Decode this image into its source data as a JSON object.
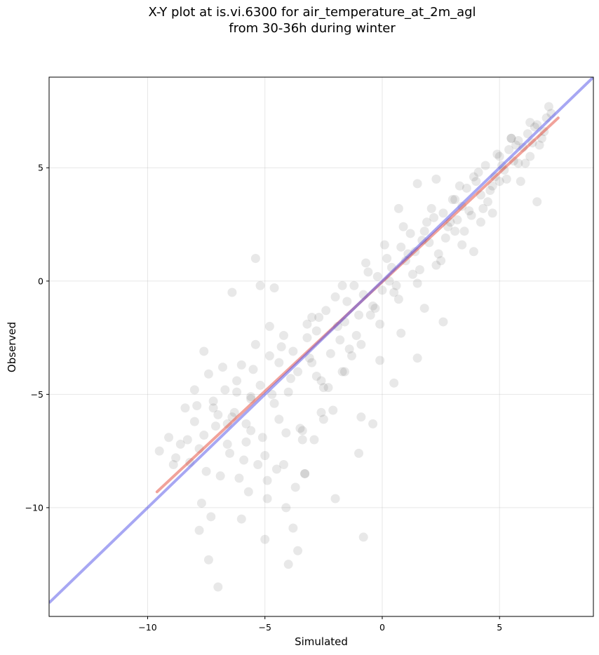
{
  "title_line1": "X-Y plot at is.vi.6300 for air_temperature_at_2m_agl",
  "title_line2": "from 30-36h during winter",
  "chart_data": {
    "type": "scatter",
    "title": "X-Y plot at is.vi.6300 for air_temperature_at_2m_agl from 30-36h during winter",
    "xlabel": "Simulated",
    "ylabel": "Observed",
    "xlim": [
      -14.2,
      9.0
    ],
    "ylim": [
      -14.8,
      9.0
    ],
    "xticks": [
      -10,
      -5,
      0,
      5
    ],
    "xtick_labels": [
      "−10",
      "−5",
      "0",
      "5"
    ],
    "yticks": [
      -10,
      -5,
      0,
      5
    ],
    "ytick_labels": [
      "−10",
      "−5",
      "0",
      "5"
    ],
    "grid": true,
    "point_color": "#000000",
    "point_alpha": 0.09,
    "points": {
      "x": [
        -9.5,
        -9.1,
        -8.8,
        -8.6,
        -8.4,
        -8.2,
        -8.0,
        -7.8,
        -7.6,
        -7.4,
        -7.2,
        -7.0,
        -6.8,
        -6.6,
        -6.4,
        -6.2,
        -6.0,
        -5.8,
        -5.6,
        -5.4,
        -5.2,
        -5.0,
        -4.8,
        -4.6,
        -4.4,
        -4.2,
        -4.0,
        -3.8,
        -3.6,
        -3.4,
        -3.2,
        -3.0,
        -2.8,
        -2.6,
        -2.4,
        -2.2,
        -2.0,
        -1.8,
        -1.6,
        -1.4,
        -1.2,
        -1.0,
        -0.8,
        -0.6,
        -0.4,
        -0.2,
        0.0,
        0.2,
        0.4,
        0.6,
        0.8,
        1.0,
        1.2,
        1.4,
        1.6,
        1.8,
        2.0,
        2.2,
        2.4,
        2.6,
        2.8,
        3.0,
        3.2,
        3.4,
        3.6,
        3.8,
        4.0,
        4.2,
        4.4,
        4.6,
        4.8,
        5.0,
        5.2,
        5.4,
        5.6,
        5.8,
        6.0,
        6.2,
        6.4,
        6.6,
        6.8,
        7.0,
        7.2,
        -8.9,
        -8.3,
        -7.9,
        -7.5,
        -7.1,
        -6.7,
        -6.3,
        -5.9,
        -5.5,
        -5.1,
        -4.7,
        -4.3,
        -3.9,
        -3.5,
        -3.1,
        -2.7,
        -2.3,
        -1.9,
        -1.5,
        -1.1,
        -0.7,
        -0.3,
        0.1,
        0.5,
        0.9,
        1.3,
        1.7,
        2.1,
        2.5,
        2.9,
        3.3,
        3.7,
        4.1,
        4.5,
        4.9,
        5.3,
        5.7,
        6.1,
        6.5,
        6.9,
        -7.7,
        -7.3,
        -6.9,
        -6.5,
        -6.1,
        -5.7,
        -5.3,
        -4.9,
        -4.5,
        -4.1,
        -3.7,
        -3.3,
        -2.9,
        -2.5,
        -2.1,
        -1.7,
        -1.3,
        -0.9,
        -0.5,
        -0.1,
        0.3,
        0.7,
        1.1,
        1.5,
        1.9,
        2.3,
        2.7,
        3.1,
        3.5,
        3.9,
        4.3,
        4.7,
        5.1,
        5.5,
        5.9,
        6.3,
        6.7,
        -7.8,
        -7.4,
        -7.0,
        -6.0,
        -5.0,
        -4.0,
        -3.8,
        -3.6,
        -2.0,
        -1.0,
        -0.8,
        0.5,
        1.5,
        -5.4,
        -5.2,
        -4.6,
        -8.0,
        -7.6,
        -7.2,
        -6.2,
        -5.6,
        -4.8,
        -4.4,
        -3.4,
        -3.0,
        -2.6,
        -6.4,
        -5.8,
        -4.2,
        -3.2,
        -2.8,
        -1.6,
        -0.4,
        0.8,
        1.8,
        2.6,
        3.4,
        4.2,
        5.0,
        5.8,
        6.6,
        -6.6,
        -5.6,
        -4.9,
        -4.1,
        -3.3,
        -2.5,
        -1.7,
        -0.9,
        -0.1,
        0.7,
        1.5,
        2.3,
        3.1,
        3.9,
        4.7,
        5.5,
        6.3,
        7.1
      ],
      "y": [
        -7.5,
        -6.9,
        -7.8,
        -7.2,
        -5.6,
        -8.0,
        -6.2,
        -7.4,
        -6.8,
        -4.1,
        -5.3,
        -5.9,
        -3.8,
        -7.2,
        -6.0,
        -4.4,
        -3.7,
        -6.3,
        -5.1,
        -2.8,
        -4.6,
        -7.7,
        -3.3,
        -5.4,
        -6.1,
        -2.4,
        -4.9,
        -3.1,
        -4.0,
        -6.6,
        -1.9,
        -3.6,
        -2.2,
        -4.4,
        -1.3,
        -3.2,
        -0.7,
        -2.6,
        -1.8,
        -3.0,
        -0.2,
        -1.5,
        -0.6,
        0.4,
        -1.1,
        0.2,
        -0.4,
        1.0,
        0.6,
        -0.2,
        1.5,
        0.9,
        2.1,
        1.3,
        0.5,
        2.2,
        1.7,
        2.8,
        1.2,
        3.0,
        2.4,
        3.6,
        2.7,
        3.3,
        4.1,
        2.9,
        4.4,
        3.8,
        5.1,
        4.0,
        4.6,
        5.5,
        4.9,
        5.8,
        5.3,
        6.2,
        5.9,
        6.5,
        6.1,
        6.9,
        6.3,
        7.2,
        7.4,
        -8.1,
        -7.0,
        -5.5,
        -8.4,
        -6.4,
        -4.8,
        -5.8,
        -7.9,
        -3.9,
        -6.9,
        -5.0,
        -2.9,
        -4.3,
        -6.5,
        -3.4,
        -1.6,
        -4.7,
        -2.0,
        -0.9,
        -2.4,
        0.8,
        -1.2,
        1.6,
        -0.5,
        2.4,
        0.3,
        1.8,
        3.2,
        0.9,
        2.6,
        4.2,
        3.1,
        4.8,
        3.5,
        5.6,
        4.5,
        6.0,
        5.2,
        6.8,
        6.6,
        -9.8,
        -10.4,
        -8.6,
        -7.6,
        -8.7,
        -9.3,
        -8.1,
        -9.6,
        -8.3,
        -10.0,
        -9.1,
        -8.5,
        -7.0,
        -6.1,
        -5.7,
        -4.0,
        -3.3,
        -2.8,
        -1.5,
        -1.9,
        0.0,
        -0.8,
        1.2,
        -0.1,
        2.6,
        0.7,
        1.9,
        3.6,
        2.2,
        4.6,
        3.2,
        4.2,
        5.1,
        6.3,
        4.4,
        5.5,
        6.0,
        -11.0,
        -12.3,
        -13.5,
        -10.5,
        -11.4,
        -12.5,
        -10.9,
        -11.9,
        -9.6,
        -7.6,
        -11.3,
        -4.5,
        -3.4,
        1.0,
        -0.2,
        -0.3,
        -4.8,
        -3.1,
        -5.6,
        -4.9,
        -6.6,
        -2.0,
        -3.6,
        -7.0,
        -1.6,
        -5.8,
        -0.5,
        -7.1,
        -8.1,
        -2.5,
        -4.2,
        -4.0,
        -6.3,
        -2.3,
        -1.2,
        -1.8,
        1.6,
        2.6,
        4.4,
        5.2,
        3.5,
        -6.3,
        -5.2,
        -8.8,
        -6.7,
        -8.5,
        -4.7,
        -0.2,
        -6.0,
        -3.5,
        3.2,
        4.3,
        4.5,
        2.2,
        1.3,
        3.0,
        6.3,
        7.0,
        7.7
      ]
    },
    "fit_line": {
      "color": "#e0301e",
      "alpha": 0.45,
      "x": [
        -9.6,
        7.5
      ],
      "y": [
        -9.3,
        7.2
      ]
    },
    "identity_line": {
      "color": "#4f4fe8",
      "alpha": 0.5,
      "x": [
        -14.2,
        9.0
      ],
      "y": [
        -14.2,
        9.0
      ]
    }
  }
}
